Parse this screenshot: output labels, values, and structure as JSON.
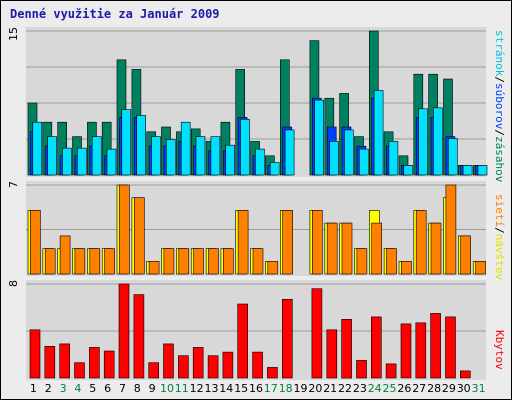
{
  "title": "Denné využitie za Január 2009",
  "colors": {
    "frame_bg": "#ececec",
    "panel_bg": "#d8d8d8",
    "grid": "#9b9b9b",
    "title": "#1b1ba8",
    "weekend_day": "#008040",
    "weekday": "#000000"
  },
  "side_labels": {
    "top": [
      {
        "text": "stránok",
        "color": "#00c0e0"
      },
      {
        "text": "/",
        "color": "#000000"
      },
      {
        "text": "súborov",
        "color": "#0040ff"
      },
      {
        "text": "/",
        "color": "#000000"
      },
      {
        "text": "zásahov",
        "color": "#008060"
      }
    ],
    "middle": [
      {
        "text": "sietí",
        "color": "#ff8000"
      },
      {
        "text": "/",
        "color": "#000000"
      },
      {
        "text": "návštev",
        "color": "#e0e000"
      }
    ],
    "bottom": [
      {
        "text": "Kbytov",
        "color": "#ff0000"
      }
    ]
  },
  "days": [
    {
      "label": "1",
      "weekend": false
    },
    {
      "label": "2",
      "weekend": false
    },
    {
      "label": "3",
      "weekend": true
    },
    {
      "label": "4",
      "weekend": true
    },
    {
      "label": "5",
      "weekend": false
    },
    {
      "label": "6",
      "weekend": false
    },
    {
      "label": "7",
      "weekend": false
    },
    {
      "label": "8",
      "weekend": false
    },
    {
      "label": "9",
      "weekend": false
    },
    {
      "label": "10",
      "weekend": true
    },
    {
      "label": "11",
      "weekend": true
    },
    {
      "label": "12",
      "weekend": false
    },
    {
      "label": "13",
      "weekend": false
    },
    {
      "label": "14",
      "weekend": false
    },
    {
      "label": "15",
      "weekend": false
    },
    {
      "label": "16",
      "weekend": false
    },
    {
      "label": "17",
      "weekend": true
    },
    {
      "label": "18",
      "weekend": true
    },
    {
      "label": "19",
      "weekend": false
    },
    {
      "label": "20",
      "weekend": false
    },
    {
      "label": "21",
      "weekend": false
    },
    {
      "label": "22",
      "weekend": false
    },
    {
      "label": "23",
      "weekend": false
    },
    {
      "label": "24",
      "weekend": true
    },
    {
      "label": "25",
      "weekend": true
    },
    {
      "label": "26",
      "weekend": false
    },
    {
      "label": "27",
      "weekend": false
    },
    {
      "label": "28",
      "weekend": false
    },
    {
      "label": "29",
      "weekend": false
    },
    {
      "label": "30",
      "weekend": false
    },
    {
      "label": "31",
      "weekend": true
    }
  ],
  "chart_data": [
    {
      "type": "bar",
      "panel": "top",
      "ymax_label": "15",
      "ylim": [
        0,
        15
      ],
      "grid": true,
      "categories": [
        "1",
        "2",
        "3",
        "4",
        "5",
        "6",
        "7",
        "8",
        "9",
        "10",
        "11",
        "12",
        "13",
        "14",
        "15",
        "16",
        "17",
        "18",
        "19",
        "20",
        "21",
        "22",
        "23",
        "24",
        "25",
        "26",
        "27",
        "28",
        "29",
        "30",
        "31"
      ],
      "series": [
        {
          "name": "zásahov",
          "color": "#008060",
          "values": [
            7.5,
            5.5,
            5.5,
            4,
            5.5,
            5.5,
            12,
            11,
            4.5,
            5,
            4.5,
            4.8,
            3.5,
            5.5,
            11,
            3.5,
            2,
            12,
            0,
            14,
            8,
            8.5,
            4,
            15,
            4.5,
            2,
            10.5,
            10.5,
            10,
            1,
            1
          ]
        },
        {
          "name": "súborov",
          "color": "#0040ff",
          "values": [
            4.5,
            3,
            2,
            2,
            3,
            2,
            6,
            6,
            3,
            3,
            3.5,
            3,
            2.5,
            2.5,
            6,
            2,
            1,
            5,
            0,
            8,
            5,
            5,
            3,
            8,
            3,
            1,
            6,
            6,
            4,
            1,
            1
          ]
        },
        {
          "name": "stránok",
          "color": "#00e0ff",
          "values": [
            5.5,
            4,
            2.8,
            2.8,
            4,
            2.7,
            6.8,
            6.2,
            4,
            3.7,
            5.5,
            4,
            4,
            3.1,
            5.8,
            2.7,
            1.3,
            4.7,
            0,
            7.8,
            3.5,
            4.7,
            2.7,
            8.8,
            3.5,
            1,
            6.9,
            7,
            3.8,
            1,
            1
          ]
        }
      ]
    },
    {
      "type": "bar",
      "panel": "middle",
      "ymax_label": "7",
      "ylim": [
        0,
        7
      ],
      "grid": true,
      "categories": [
        "1",
        "2",
        "3",
        "4",
        "5",
        "6",
        "7",
        "8",
        "9",
        "10",
        "11",
        "12",
        "13",
        "14",
        "15",
        "16",
        "17",
        "18",
        "19",
        "20",
        "21",
        "22",
        "23",
        "24",
        "25",
        "26",
        "27",
        "28",
        "29",
        "30",
        "31"
      ],
      "series": [
        {
          "name": "návštev",
          "color": "#ffff00",
          "values": [
            5,
            2,
            2,
            2,
            2,
            2,
            7,
            6,
            1,
            2,
            2,
            2,
            2,
            2,
            5,
            2,
            1,
            5,
            0,
            5,
            4,
            4,
            2,
            5,
            2,
            1,
            5,
            4,
            6,
            3,
            1
          ]
        },
        {
          "name": "sietí",
          "color": "#ff8000",
          "values": [
            5,
            2,
            3,
            2,
            2,
            2,
            7,
            6,
            1,
            2,
            2,
            2,
            2,
            2,
            5,
            2,
            1,
            5,
            0,
            5,
            4,
            4,
            2,
            4,
            2,
            1,
            5,
            4,
            7,
            3,
            1
          ]
        }
      ]
    },
    {
      "type": "bar",
      "panel": "bottom",
      "ymax_label": "8",
      "ylim": [
        0,
        8
      ],
      "grid": true,
      "categories": [
        "1",
        "2",
        "3",
        "4",
        "5",
        "6",
        "7",
        "8",
        "9",
        "10",
        "11",
        "12",
        "13",
        "14",
        "15",
        "16",
        "17",
        "18",
        "19",
        "20",
        "21",
        "22",
        "23",
        "24",
        "25",
        "26",
        "27",
        "28",
        "29",
        "30",
        "31"
      ],
      "series": [
        {
          "name": "Kbytov",
          "color": "#ff0000",
          "values": [
            4.1,
            2.7,
            2.9,
            1.3,
            2.6,
            2.3,
            8,
            7.1,
            1.3,
            2.9,
            1.9,
            2.6,
            1.9,
            2.2,
            6.3,
            2.2,
            0.9,
            6.7,
            0,
            7.6,
            4.1,
            5,
            1.5,
            5.2,
            1.2,
            4.6,
            4.7,
            5.5,
            5.2,
            0.6,
            0
          ]
        }
      ]
    }
  ]
}
